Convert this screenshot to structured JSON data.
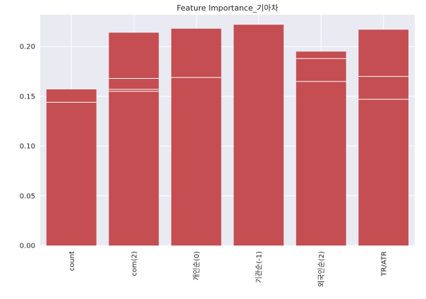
{
  "chart_data": {
    "type": "bar",
    "title": "Feature Importance_기아차",
    "xlabel": "",
    "ylabel": "",
    "categories": [
      "count",
      "com(2)",
      "개인순(0)",
      "기관순(-1)",
      "외국인순(2)",
      "TR/ATR"
    ],
    "stacked_segment_tops": [
      [
        0.144,
        0.157
      ],
      [
        0.155,
        0.157,
        0.168,
        0.214
      ],
      [
        0.169,
        0.218
      ],
      [
        0.222
      ],
      [
        0.165,
        0.188,
        0.195
      ],
      [
        0.147,
        0.17,
        0.217
      ]
    ],
    "values": [
      0.157,
      0.214,
      0.218,
      0.222,
      0.195,
      0.217
    ],
    "ylim": [
      0,
      0.232
    ],
    "yticks": [
      "0.00",
      "0.05",
      "0.10",
      "0.15",
      "0.20"
    ],
    "grid": true,
    "legend": "none",
    "colors": {
      "bar": "#c44e52",
      "background": "#eaeaf2",
      "grid": "#ffffff",
      "segment_line": "#ffffff"
    }
  }
}
